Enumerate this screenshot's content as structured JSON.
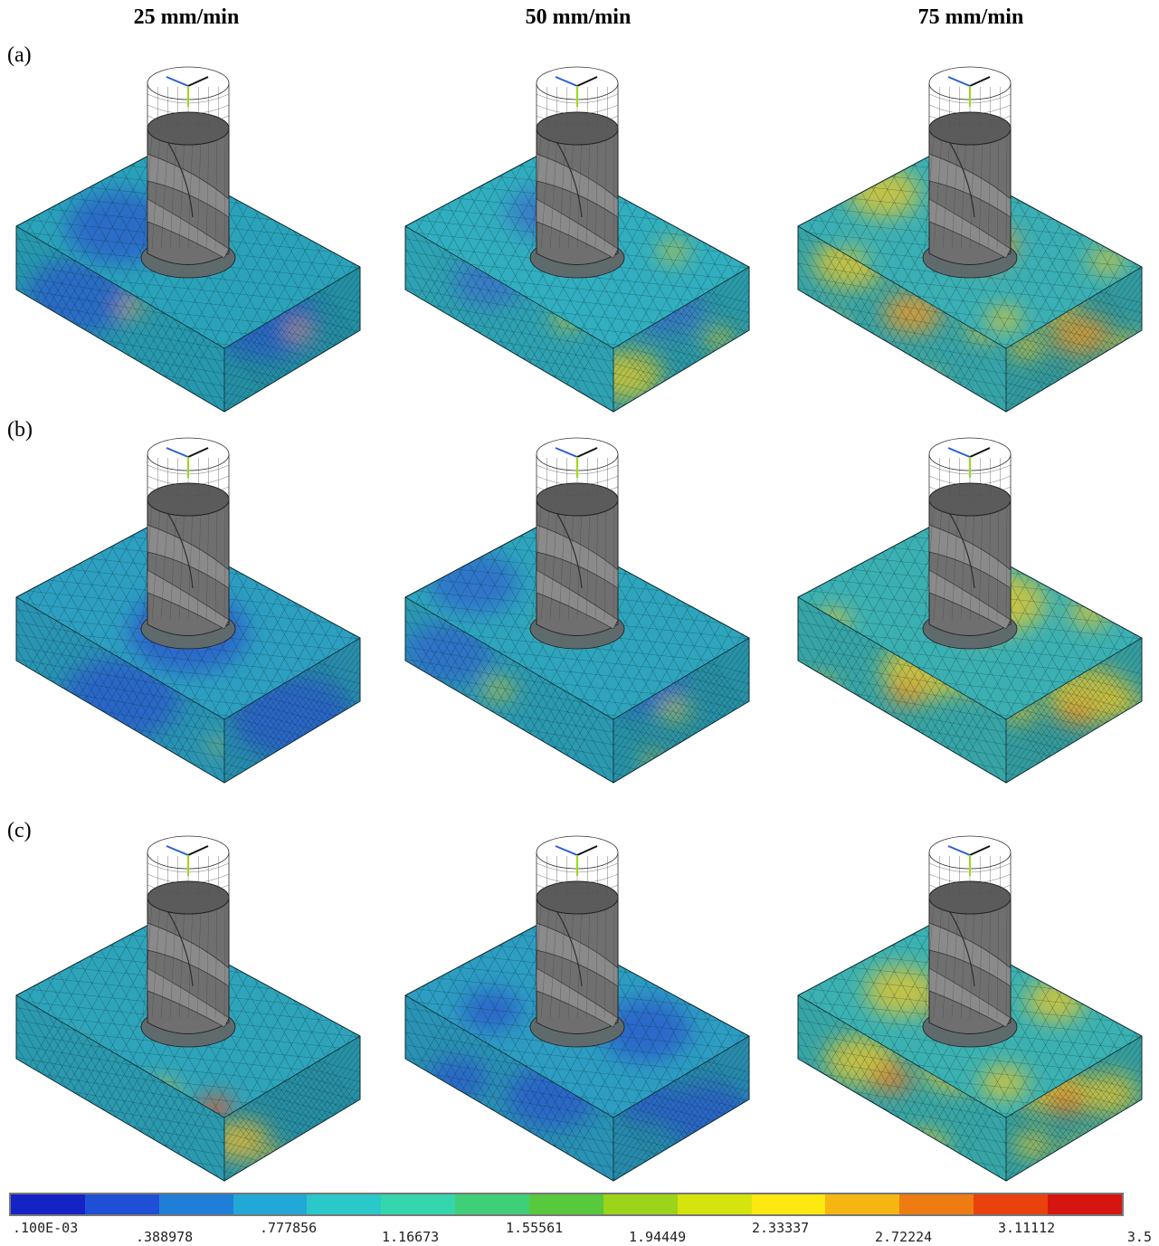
{
  "headers": [
    "25 mm/min",
    "50 mm/min",
    "75 mm/min"
  ],
  "rows": [
    "(a)",
    "(b)",
    "(c)"
  ],
  "colorbar": {
    "colors": [
      "#1522c6",
      "#1f4fd6",
      "#1f7fd8",
      "#21a8d6",
      "#2bc8c9",
      "#34d6ad",
      "#3fcf78",
      "#58c83c",
      "#9bd419",
      "#d6e40e",
      "#fde910",
      "#f6b612",
      "#ef7c10",
      "#e9420c",
      "#d61512"
    ],
    "labels": [
      ".100E-03",
      ".388978",
      ".777856",
      "1.16673",
      "1.55561",
      "1.94449",
      "2.33337",
      "2.72224",
      "3.11112",
      "3.5"
    ]
  },
  "panels": [
    {
      "row": 0,
      "col": 0,
      "base": "#2aa3ba",
      "hot": [
        [
          "#2b63c9",
          0.3,
          0.38,
          0.18
        ],
        [
          "#e9a82b",
          0.55,
          0.44,
          0.04
        ]
      ]
    },
    {
      "row": 0,
      "col": 1,
      "base": "#31aebf",
      "hot": [
        [
          "#cfc734",
          0.1,
          0.75,
          0.12
        ],
        [
          "#3a76c9",
          0.4,
          0.3,
          0.12
        ],
        [
          "#cfc734",
          0.78,
          0.5,
          0.05
        ]
      ]
    },
    {
      "row": 0,
      "col": 2,
      "base": "#3aafb4",
      "hot": [
        [
          "#d9c737",
          0.25,
          0.2,
          0.12
        ],
        [
          "#e39a2f",
          0.55,
          0.47,
          0.1
        ],
        [
          "#d9c737",
          0.9,
          0.55,
          0.06
        ],
        [
          "#d9c737",
          0.15,
          0.55,
          0.06
        ],
        [
          "#d9c737",
          0.6,
          0.85,
          0.06
        ]
      ]
    },
    {
      "row": 1,
      "col": 0,
      "base": "#2d9fc1",
      "hot": [
        [
          "#2b5fcb",
          0.5,
          0.55,
          0.2
        ],
        [
          "#d3c436",
          0.97,
          0.8,
          0.03
        ]
      ]
    },
    {
      "row": 1,
      "col": 1,
      "base": "#2ea5bd",
      "hot": [
        [
          "#2e6ccb",
          0.2,
          0.3,
          0.15
        ],
        [
          "#c9c438",
          0.45,
          0.5,
          0.05
        ],
        [
          "#c9c438",
          0.3,
          0.85,
          0.04
        ]
      ]
    },
    {
      "row": 1,
      "col": 2,
      "base": "#3bb0b3",
      "hot": [
        [
          "#d8c535",
          0.6,
          0.4,
          0.14
        ],
        [
          "#e38f2e",
          0.52,
          0.52,
          0.06
        ],
        [
          "#d8c535",
          0.1,
          0.5,
          0.06
        ],
        [
          "#d8c535",
          0.85,
          0.45,
          0.07
        ]
      ]
    },
    {
      "row": 2,
      "col": 0,
      "base": "#2ea4bb",
      "hot": [
        [
          "#dcb838",
          0.12,
          0.72,
          0.1
        ],
        [
          "#e2562a",
          0.58,
          0.95,
          0.06
        ],
        [
          "#d3c437",
          0.42,
          0.88,
          0.06
        ]
      ]
    },
    {
      "row": 2,
      "col": 1,
      "base": "#2d9dc2",
      "hot": [
        [
          "#2c5fcb",
          0.7,
          0.55,
          0.15
        ],
        [
          "#2c5fcb",
          0.25,
          0.45,
          0.1
        ]
      ]
    },
    {
      "row": 2,
      "col": 2,
      "base": "#3bb1b2",
      "hot": [
        [
          "#d9c536",
          0.3,
          0.35,
          0.12
        ],
        [
          "#e37e2c",
          0.45,
          0.45,
          0.07
        ],
        [
          "#d9c536",
          0.75,
          0.4,
          0.1
        ],
        [
          "#d9c536",
          0.6,
          0.82,
          0.08
        ],
        [
          "#d9c536",
          0.2,
          0.75,
          0.06
        ]
      ]
    }
  ]
}
